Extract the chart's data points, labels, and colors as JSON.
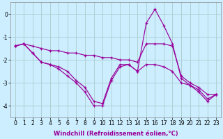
{
  "xlabel": "Windchill (Refroidissement éolien,°C)",
  "background_color": "#cceeff",
  "grid_color": "#aacccc",
  "line_color": "#990099",
  "x_hours": [
    0,
    1,
    2,
    3,
    4,
    5,
    6,
    7,
    8,
    9,
    10,
    11,
    12,
    13,
    14,
    15,
    16,
    17,
    18,
    19,
    20,
    21,
    22,
    23
  ],
  "line_top": [
    -1.4,
    -1.3,
    -1.4,
    -1.5,
    -1.6,
    -1.6,
    -1.7,
    -1.7,
    -1.8,
    -1.8,
    -1.9,
    -1.9,
    -2.0,
    -2.0,
    -2.1,
    -1.3,
    -1.3,
    -1.3,
    -1.4,
    -2.7,
    -3.0,
    -3.2,
    -3.5,
    -3.5
  ],
  "line_mid": [
    -1.4,
    -1.3,
    -1.7,
    -2.1,
    -2.2,
    -2.3,
    -2.5,
    -2.9,
    -3.2,
    -3.8,
    -3.9,
    -2.8,
    -2.2,
    -2.2,
    -2.5,
    -2.2,
    -2.2,
    -2.3,
    -2.5,
    -3.0,
    -3.1,
    -3.3,
    -3.7,
    -3.5
  ],
  "line_bot": [
    -1.4,
    -1.3,
    -1.7,
    -2.1,
    -2.2,
    -2.4,
    -2.7,
    -3.0,
    -3.4,
    -4.0,
    -4.0,
    -2.9,
    -2.3,
    -2.2,
    -2.5,
    -0.4,
    0.2,
    -0.5,
    -1.3,
    -2.8,
    -3.1,
    -3.4,
    -3.8,
    -3.5
  ],
  "ylim": [
    -4.5,
    0.5
  ],
  "xlim": [
    -0.5,
    23.5
  ],
  "yticks": [
    0,
    -1,
    -2,
    -3,
    -4
  ],
  "xlabel_fontsize": 6,
  "tick_fontsize": 5.5
}
